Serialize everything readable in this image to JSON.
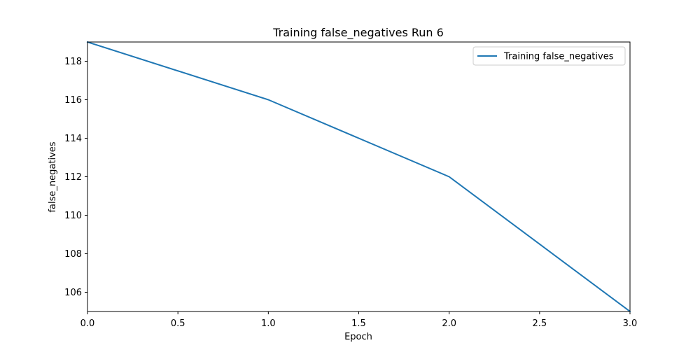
{
  "chart_data": {
    "type": "line",
    "title": "Training false_negatives Run 6",
    "xlabel": "Epoch",
    "ylabel": "false_negatives",
    "xlim": [
      0.0,
      3.0
    ],
    "ylim": [
      105,
      119
    ],
    "xticks": [
      0.0,
      0.5,
      1.0,
      1.5,
      2.0,
      2.5,
      3.0
    ],
    "xtick_labels": [
      "0.0",
      "0.5",
      "1.0",
      "1.5",
      "2.0",
      "2.5",
      "3.0"
    ],
    "yticks": [
      106,
      108,
      110,
      112,
      114,
      116,
      118
    ],
    "ytick_labels": [
      "106",
      "108",
      "110",
      "112",
      "114",
      "116",
      "118"
    ],
    "grid": false,
    "legend_position": "top-right",
    "series": [
      {
        "name": "Training false_negatives",
        "color": "#1f77b4",
        "x": [
          0,
          1,
          2,
          3
        ],
        "y": [
          119,
          116,
          112,
          105
        ]
      }
    ]
  }
}
